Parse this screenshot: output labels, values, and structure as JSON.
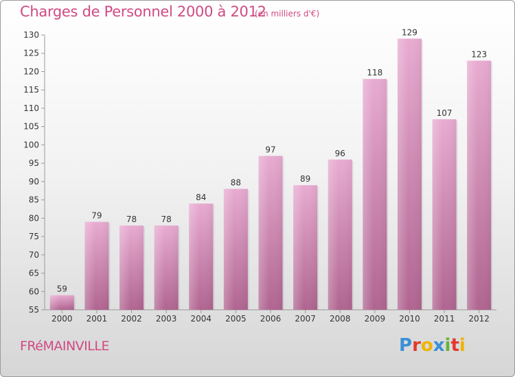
{
  "header": {
    "title": "Charges de Personnel 2000 à 2012",
    "subtitle": "(en milliers d'€)"
  },
  "footer": {
    "commune": "FRéMAINVILLE",
    "brand": "Proxiti",
    "brand_letters": [
      {
        "ch": "P",
        "color": "#3b8fd6"
      },
      {
        "ch": "r",
        "color": "#e3392d"
      },
      {
        "ch": "o",
        "color": "#f0b400"
      },
      {
        "ch": "x",
        "color": "#3b8fd6"
      },
      {
        "ch": "i",
        "color": "#6ab23e"
      },
      {
        "ch": "t",
        "color": "#e3392d"
      },
      {
        "ch": "i",
        "color": "#f0b400"
      }
    ]
  },
  "colors": {
    "accent": "#d04a82",
    "bar_light": "#e6a9cf",
    "bar_dark": "#b36691",
    "axis": "#888888"
  },
  "chart_data": {
    "type": "bar",
    "categories": [
      "2000",
      "2001",
      "2002",
      "2003",
      "2004",
      "2005",
      "2006",
      "2007",
      "2008",
      "2009",
      "2010",
      "2011",
      "2012"
    ],
    "values": [
      59,
      79,
      78,
      78,
      84,
      88,
      97,
      89,
      96,
      118,
      129,
      107,
      123
    ],
    "ylim": [
      55,
      130
    ],
    "yticks": [
      55,
      60,
      65,
      70,
      75,
      80,
      85,
      90,
      95,
      100,
      105,
      110,
      115,
      120,
      125,
      130
    ],
    "grid": false,
    "data_labels": true
  }
}
